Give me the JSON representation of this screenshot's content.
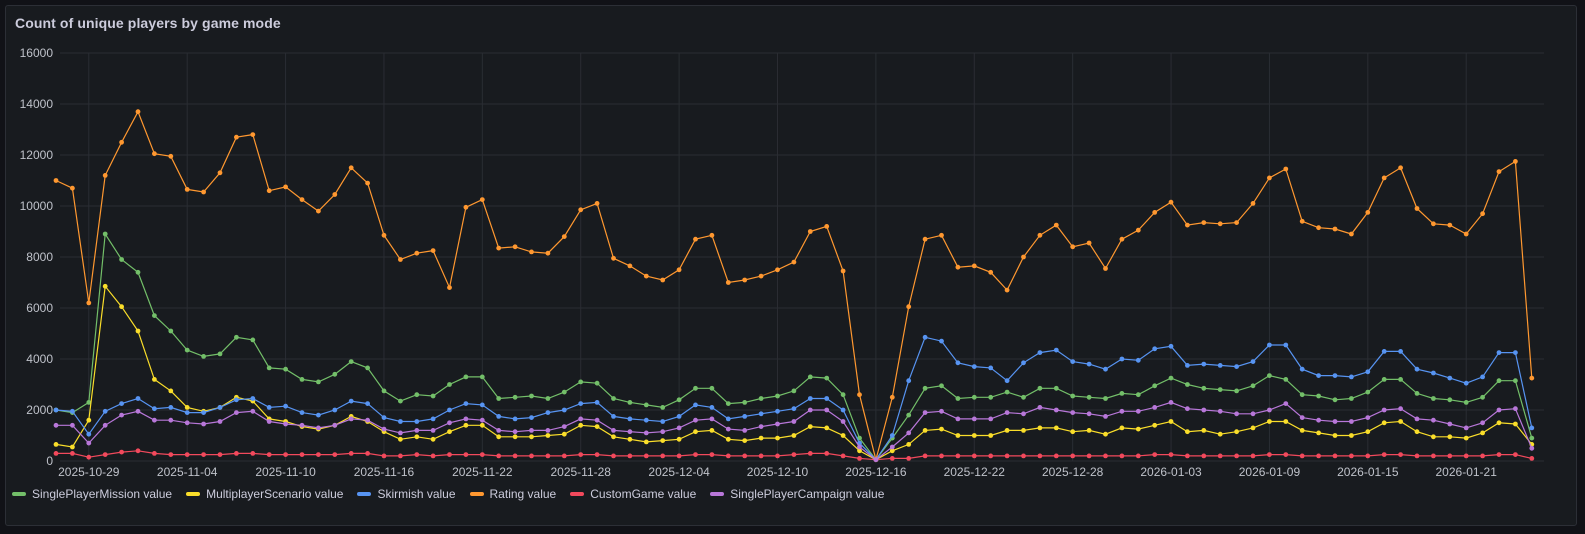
{
  "panel": {
    "title": "Count of unique players by game mode"
  },
  "chart_data": {
    "type": "line",
    "ylim": [
      0,
      16000
    ],
    "yticks": [
      "0",
      "2000",
      "4000",
      "6000",
      "8000",
      "10000",
      "12000",
      "14000",
      "16000"
    ],
    "x_start": "2025-10-27",
    "x_end": "2026-01-25",
    "xticks": [
      "2025-10-29",
      "2025-11-04",
      "2025-11-10",
      "2025-11-16",
      "2025-11-22",
      "2025-11-28",
      "2025-12-04",
      "2025-12-10",
      "2025-12-16",
      "2025-12-22",
      "2025-12-28",
      "2026-01-03",
      "2026-01-09",
      "2026-01-15",
      "2026-01-21"
    ],
    "grid": true,
    "legend_position": "bottom",
    "series": [
      {
        "name": "SinglePlayerMission value",
        "color": "#73bf69",
        "values": [
          2000,
          1900,
          2300,
          8900,
          7900,
          7400,
          5700,
          5100,
          4350,
          4100,
          4200,
          4850,
          4750,
          3650,
          3600,
          3200,
          3100,
          3400,
          3900,
          3650,
          2750,
          2350,
          2600,
          2550,
          3000,
          3300,
          3300,
          2450,
          2500,
          2550,
          2450,
          2700,
          3100,
          3050,
          2450,
          2300,
          2200,
          2100,
          2400,
          2850,
          2850,
          2250,
          2300,
          2450,
          2550,
          2750,
          3300,
          3250,
          2600,
          900,
          50,
          900,
          1800,
          2850,
          2950,
          2450,
          2500,
          2500,
          2700,
          2500,
          2850,
          2850,
          2550,
          2500,
          2450,
          2650,
          2600,
          2950,
          3250,
          3000,
          2850,
          2800,
          2750,
          2950,
          3350,
          3200,
          2600,
          2550,
          2400,
          2450,
          2700,
          3200,
          3200,
          2650,
          2450,
          2400,
          2300,
          2500,
          3150,
          3150,
          900
        ]
      },
      {
        "name": "MultiplayerScenario value",
        "color": "#fade2a",
        "values": [
          650,
          550,
          1600,
          6850,
          6050,
          5100,
          3200,
          2750,
          2100,
          1950,
          2100,
          2500,
          2350,
          1650,
          1550,
          1350,
          1250,
          1400,
          1750,
          1550,
          1150,
          850,
          950,
          850,
          1150,
          1400,
          1400,
          950,
          950,
          950,
          1000,
          1050,
          1400,
          1350,
          950,
          850,
          750,
          800,
          850,
          1150,
          1200,
          850,
          800,
          900,
          900,
          1000,
          1350,
          1300,
          1000,
          400,
          50,
          400,
          650,
          1200,
          1250,
          1000,
          1000,
          1000,
          1200,
          1200,
          1300,
          1300,
          1150,
          1200,
          1050,
          1300,
          1250,
          1400,
          1550,
          1150,
          1200,
          1050,
          1150,
          1300,
          1550,
          1550,
          1200,
          1100,
          1000,
          1000,
          1150,
          1500,
          1550,
          1150,
          950,
          950,
          900,
          1100,
          1500,
          1450,
          650
        ]
      },
      {
        "name": "Skirmish value",
        "color": "#5794f2",
        "values": [
          2000,
          1950,
          1050,
          1950,
          2250,
          2450,
          2050,
          2100,
          1900,
          1900,
          2100,
          2400,
          2450,
          2100,
          2150,
          1900,
          1800,
          2000,
          2350,
          2250,
          1700,
          1550,
          1550,
          1650,
          2000,
          2250,
          2200,
          1750,
          1650,
          1700,
          1900,
          2000,
          2250,
          2300,
          1750,
          1650,
          1600,
          1550,
          1750,
          2200,
          2100,
          1650,
          1750,
          1850,
          1950,
          2050,
          2450,
          2450,
          2000,
          700,
          50,
          1000,
          3150,
          4850,
          4700,
          3850,
          3700,
          3650,
          3150,
          3850,
          4250,
          4350,
          3900,
          3800,
          3600,
          4000,
          3950,
          4400,
          4500,
          3750,
          3800,
          3750,
          3700,
          3900,
          4550,
          4550,
          3600,
          3350,
          3350,
          3300,
          3500,
          4300,
          4300,
          3600,
          3450,
          3250,
          3050,
          3300,
          4250,
          4250,
          1300
        ]
      },
      {
        "name": "Rating value",
        "color": "#ff9830",
        "values": [
          11000,
          10700,
          6200,
          11200,
          12500,
          13700,
          12050,
          11950,
          10650,
          10550,
          11300,
          12700,
          12800,
          10600,
          10750,
          10250,
          9800,
          10450,
          11500,
          10900,
          8850,
          7900,
          8150,
          8250,
          6800,
          9950,
          10250,
          8350,
          8400,
          8200,
          8150,
          8800,
          9850,
          10100,
          7950,
          7650,
          7250,
          7100,
          7500,
          8700,
          8850,
          7000,
          7100,
          7250,
          7500,
          7800,
          9000,
          9200,
          7450,
          2600,
          50,
          2500,
          6050,
          8700,
          8850,
          7600,
          7650,
          7400,
          6700,
          8000,
          8850,
          9250,
          8400,
          8550,
          7550,
          8700,
          9050,
          9750,
          10150,
          9250,
          9350,
          9300,
          9350,
          10100,
          11100,
          11450,
          9400,
          9150,
          9100,
          8900,
          9750,
          11100,
          11500,
          9900,
          9300,
          9250,
          8900,
          9700,
          11350,
          11750,
          3250
        ]
      },
      {
        "name": "CustomGame value",
        "color": "#f2495c",
        "values": [
          300,
          300,
          150,
          250,
          350,
          400,
          300,
          250,
          250,
          250,
          250,
          300,
          300,
          250,
          250,
          250,
          250,
          250,
          300,
          300,
          200,
          200,
          250,
          200,
          250,
          250,
          250,
          200,
          200,
          200,
          200,
          200,
          250,
          250,
          200,
          200,
          200,
          200,
          200,
          250,
          250,
          200,
          200,
          200,
          200,
          250,
          300,
          300,
          200,
          100,
          50,
          100,
          100,
          200,
          200,
          200,
          200,
          200,
          200,
          200,
          200,
          200,
          200,
          200,
          200,
          200,
          200,
          250,
          250,
          200,
          200,
          200,
          200,
          200,
          250,
          250,
          200,
          200,
          200,
          200,
          200,
          250,
          250,
          200,
          200,
          200,
          200,
          200,
          250,
          250,
          100
        ]
      },
      {
        "name": "SinglePlayerCampaign value",
        "color": "#b877d9",
        "values": [
          1400,
          1400,
          700,
          1400,
          1800,
          1950,
          1600,
          1600,
          1500,
          1450,
          1550,
          1900,
          1950,
          1550,
          1450,
          1400,
          1300,
          1400,
          1650,
          1600,
          1250,
          1100,
          1200,
          1200,
          1500,
          1650,
          1600,
          1200,
          1150,
          1200,
          1200,
          1350,
          1650,
          1600,
          1200,
          1150,
          1100,
          1150,
          1300,
          1600,
          1650,
          1250,
          1200,
          1350,
          1450,
          1550,
          2000,
          2000,
          1550,
          550,
          50,
          550,
          1100,
          1900,
          1950,
          1650,
          1650,
          1650,
          1900,
          1850,
          2100,
          2000,
          1900,
          1850,
          1750,
          1950,
          1950,
          2100,
          2300,
          2050,
          2000,
          1950,
          1850,
          1850,
          2000,
          2250,
          1700,
          1600,
          1550,
          1550,
          1700,
          2000,
          2050,
          1650,
          1600,
          1450,
          1300,
          1500,
          2000,
          2050,
          500
        ]
      }
    ]
  }
}
